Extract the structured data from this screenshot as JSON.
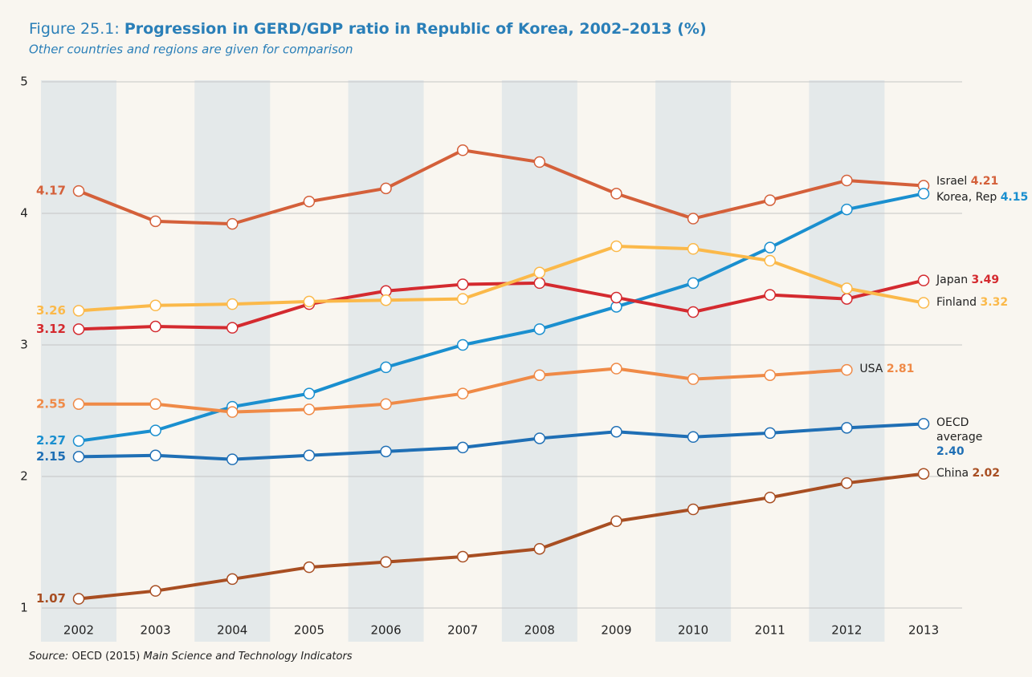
{
  "chart_data": {
    "type": "line",
    "figure_label": "Figure 25.1:",
    "title": "Progression in GERD/GDP ratio in Republic of Korea, 2002–2013 (%)",
    "subtitle": "Other countries and regions are given for comparison",
    "source_label": "Source:",
    "source": "OECD (2015)",
    "source_title": "Main Science and Technology Indicators",
    "categories": [
      "2002",
      "2003",
      "2004",
      "2005",
      "2006",
      "2007",
      "2008",
      "2009",
      "2010",
      "2011",
      "2012",
      "2013"
    ],
    "ylim": [
      1,
      5
    ],
    "yticks": [
      1,
      2,
      3,
      4,
      5
    ],
    "grid": true,
    "series": [
      {
        "name": "Israel",
        "color": "#d4603a",
        "values": [
          4.17,
          3.94,
          3.92,
          4.09,
          4.19,
          4.48,
          4.39,
          4.15,
          3.96,
          4.1,
          4.25,
          4.21
        ],
        "value_labels": [
          "4.17",
          null,
          null,
          null,
          null,
          null,
          null,
          null,
          null,
          null,
          null,
          "4.21"
        ]
      },
      {
        "name": "Korea, Rep",
        "color": "#1a8fcf",
        "values": [
          2.27,
          2.35,
          2.53,
          2.63,
          2.83,
          3.0,
          3.12,
          3.29,
          3.47,
          3.74,
          4.03,
          4.15
        ],
        "value_labels": [
          "2.27",
          null,
          null,
          null,
          null,
          null,
          null,
          null,
          null,
          null,
          null,
          "4.15"
        ]
      },
      {
        "name": "Japan",
        "color": "#d42a2f",
        "values": [
          3.12,
          3.14,
          3.13,
          3.31,
          3.41,
          3.46,
          3.47,
          3.36,
          3.25,
          3.38,
          3.35,
          3.49
        ],
        "value_labels": [
          "3.12",
          null,
          null,
          null,
          null,
          null,
          null,
          null,
          null,
          null,
          null,
          "3.49"
        ]
      },
      {
        "name": "Finland",
        "color": "#fbb94a",
        "values": [
          3.26,
          3.3,
          3.31,
          3.33,
          3.34,
          3.35,
          3.55,
          3.75,
          3.73,
          3.64,
          3.43,
          3.32
        ],
        "value_labels": [
          "3.26",
          null,
          null,
          null,
          null,
          null,
          null,
          null,
          null,
          null,
          null,
          "3.32"
        ]
      },
      {
        "name": "USA",
        "color": "#ef8a47",
        "values": [
          2.55,
          2.55,
          2.49,
          2.51,
          2.55,
          2.63,
          2.77,
          2.82,
          2.74,
          2.77,
          2.81,
          null
        ],
        "value_labels": [
          "2.55",
          null,
          null,
          null,
          null,
          null,
          null,
          null,
          null,
          null,
          "2.81",
          null
        ]
      },
      {
        "name": "OECD average",
        "color": "#1f6fb5",
        "values": [
          2.15,
          2.16,
          2.13,
          2.16,
          2.19,
          2.22,
          2.29,
          2.34,
          2.3,
          2.33,
          2.37,
          2.4
        ],
        "value_labels": [
          "2.15",
          null,
          null,
          null,
          null,
          null,
          null,
          null,
          null,
          null,
          null,
          "2.40"
        ]
      },
      {
        "name": "China",
        "color": "#a84e22",
        "values": [
          1.07,
          1.13,
          1.22,
          1.31,
          1.35,
          1.39,
          1.45,
          1.66,
          1.75,
          1.84,
          1.95,
          2.02
        ],
        "value_labels": [
          "1.07",
          null,
          null,
          null,
          null,
          null,
          null,
          null,
          null,
          null,
          null,
          "2.02"
        ]
      }
    ]
  }
}
